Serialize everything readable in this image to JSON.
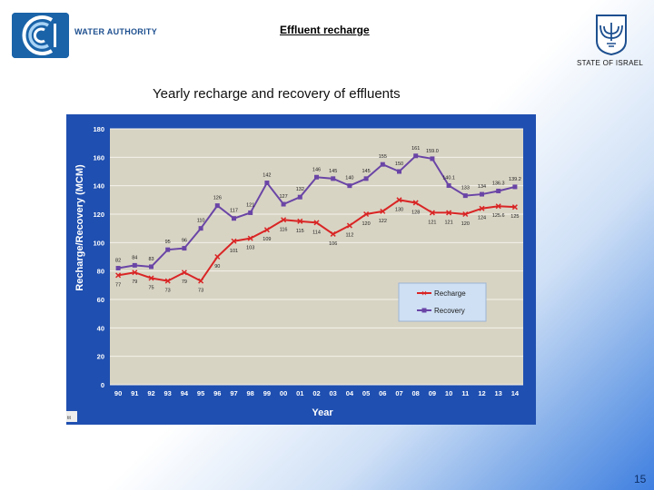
{
  "header": {
    "brand": "WATER AUTHORITY",
    "title": "Effluent  recharge",
    "state": "STATE OF ISRAEL",
    "logo_icon": "water-authority-logo-icon",
    "emblem_icon": "menorah-emblem-icon"
  },
  "slide": {
    "subtitle": "Yearly recharge and recovery of effluents",
    "page_number": "15",
    "corner_mark": "tit"
  },
  "colors": {
    "chart_frame": "#1f4fb0",
    "plot_bg": "#d8d4c4",
    "recharge": "#d92525",
    "recovery": "#6a45a6",
    "legend_bg": "#cfe0f4"
  },
  "chart_data": {
    "type": "line",
    "ylabel": "Recharge/Recovery (MCM)",
    "xlabel": "Year",
    "ylim": [
      0,
      180
    ],
    "yticks": [
      "0",
      "20",
      "40",
      "60",
      "80",
      "100",
      "120",
      "140",
      "160",
      "180"
    ],
    "categories": [
      "90",
      "91",
      "92",
      "93",
      "94",
      "95",
      "96",
      "97",
      "98",
      "99",
      "00",
      "01",
      "02",
      "03",
      "04",
      "05",
      "06",
      "07",
      "08",
      "09",
      "10",
      "11",
      "12",
      "13",
      "14"
    ],
    "legend_position": "bottom-right",
    "grid": true,
    "series": [
      {
        "name": "Recharge",
        "values": [
          77,
          79,
          75,
          73,
          79,
          73,
          90,
          101,
          103,
          109,
          116,
          115,
          114,
          106,
          112,
          120,
          122,
          130,
          128,
          121,
          121,
          120,
          124,
          125.6,
          125
        ],
        "labels": [
          "77",
          "79",
          "75",
          "73",
          "79",
          "73",
          "90",
          "101",
          "103",
          "109",
          "116",
          "115",
          "114",
          "106",
          "112",
          "120",
          "122",
          "130",
          "128",
          "121",
          "121",
          "120",
          "124",
          "125.6",
          "125"
        ]
      },
      {
        "name": "Recovery",
        "values": [
          82,
          84,
          83,
          95,
          96,
          110,
          126,
          117,
          121,
          142,
          127,
          132,
          146,
          145,
          140,
          145,
          155,
          150,
          161,
          159,
          140.1,
          133,
          134,
          136.3,
          139.2
        ],
        "labels": [
          "82",
          "84",
          "83",
          "95",
          "96",
          "110",
          "126",
          "117",
          "121",
          "142",
          "127",
          "132",
          "146",
          "145",
          "140",
          "145",
          "155",
          "150",
          "161",
          "159.0",
          "140.1",
          "133",
          "134",
          "136.3",
          "139.2"
        ]
      }
    ]
  }
}
